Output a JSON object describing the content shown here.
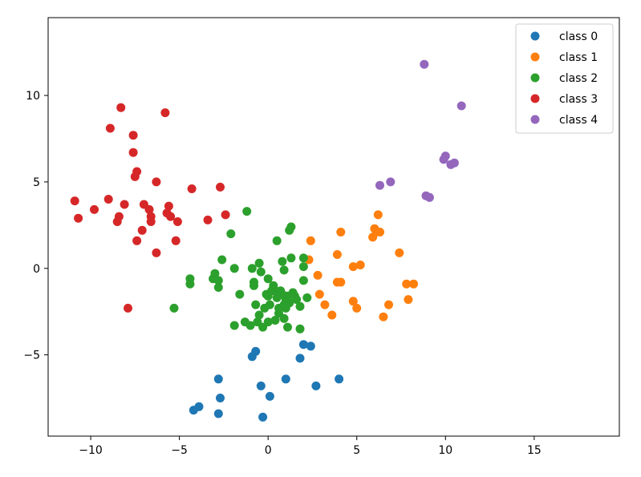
{
  "chart_data": {
    "type": "scatter",
    "title": "",
    "xlabel": "",
    "ylabel": "",
    "xlim": [
      -12.4,
      19.8
    ],
    "ylim": [
      -9.7,
      14.5
    ],
    "xticks": [
      -10,
      -5,
      0,
      5,
      10,
      15
    ],
    "yticks": [
      -5,
      0,
      5,
      10
    ],
    "xtick_labels": [
      "−10",
      "−5",
      "0",
      "5",
      "10",
      "15"
    ],
    "ytick_labels": [
      "−5",
      "0",
      "5",
      "10"
    ],
    "grid": false,
    "legend_position": "top-right",
    "series": [
      {
        "name": "class 0",
        "color": "#1f77b4",
        "points": [
          [
            -4.2,
            -8.2
          ],
          [
            -3.9,
            -8.0
          ],
          [
            -2.8,
            -6.4
          ],
          [
            -2.7,
            -7.5
          ],
          [
            -2.8,
            -8.4
          ],
          [
            -0.9,
            -5.1
          ],
          [
            -0.7,
            -4.8
          ],
          [
            -0.4,
            -6.8
          ],
          [
            -0.3,
            -8.6
          ],
          [
            0.1,
            -7.4
          ],
          [
            1.0,
            -6.4
          ],
          [
            1.8,
            -5.2
          ],
          [
            2.0,
            -4.4
          ],
          [
            2.4,
            -4.5
          ],
          [
            2.7,
            -6.8
          ],
          [
            4.0,
            -6.4
          ]
        ]
      },
      {
        "name": "class 1",
        "color": "#ff7f0e",
        "points": [
          [
            2.3,
            0.5
          ],
          [
            2.4,
            1.6
          ],
          [
            2.8,
            -0.4
          ],
          [
            2.9,
            -1.5
          ],
          [
            3.2,
            -2.1
          ],
          [
            3.6,
            -2.7
          ],
          [
            3.9,
            0.8
          ],
          [
            3.9,
            -0.8
          ],
          [
            4.1,
            -0.8
          ],
          [
            4.1,
            2.1
          ],
          [
            4.8,
            0.1
          ],
          [
            4.8,
            -1.9
          ],
          [
            5.0,
            -2.3
          ],
          [
            5.2,
            0.2
          ],
          [
            5.9,
            1.8
          ],
          [
            6.0,
            2.3
          ],
          [
            6.1,
            2.1
          ],
          [
            6.2,
            3.1
          ],
          [
            6.3,
            2.1
          ],
          [
            6.5,
            -2.8
          ],
          [
            6.8,
            -2.1
          ],
          [
            7.4,
            0.9
          ],
          [
            7.8,
            -0.9
          ],
          [
            7.9,
            -1.8
          ],
          [
            8.2,
            -0.9
          ]
        ]
      },
      {
        "name": "class 2",
        "color": "#2ca02c",
        "points": [
          [
            -5.3,
            -2.3
          ],
          [
            -4.4,
            -0.6
          ],
          [
            -4.4,
            -0.9
          ],
          [
            -3.1,
            -0.6
          ],
          [
            -3.0,
            -0.3
          ],
          [
            -2.8,
            -0.7
          ],
          [
            -2.8,
            -1.1
          ],
          [
            -2.6,
            0.5
          ],
          [
            -2.1,
            2.0
          ],
          [
            -1.9,
            -3.3
          ],
          [
            -1.9,
            0.0
          ],
          [
            -1.6,
            -1.5
          ],
          [
            -1.3,
            -3.1
          ],
          [
            -1.2,
            3.3
          ],
          [
            -1.0,
            -3.3
          ],
          [
            -0.9,
            0.0
          ],
          [
            -0.8,
            -1.0
          ],
          [
            -0.8,
            -0.8
          ],
          [
            -0.7,
            -2.1
          ],
          [
            -0.6,
            -3.1
          ],
          [
            -0.5,
            0.3
          ],
          [
            -0.5,
            -2.7
          ],
          [
            -0.4,
            -0.2
          ],
          [
            -0.3,
            -3.4
          ],
          [
            -0.2,
            -2.3
          ],
          [
            -0.1,
            -1.5
          ],
          [
            0.0,
            -0.6
          ],
          [
            0.0,
            -3.1
          ],
          [
            0.0,
            -1.6
          ],
          [
            0.1,
            -2.1
          ],
          [
            0.2,
            -1.3
          ],
          [
            0.3,
            -1.0
          ],
          [
            0.4,
            -3.0
          ],
          [
            0.4,
            -1.3
          ],
          [
            0.5,
            -1.7
          ],
          [
            0.5,
            1.6
          ],
          [
            0.6,
            -2.3
          ],
          [
            0.6,
            -2.6
          ],
          [
            0.7,
            -1.3
          ],
          [
            0.8,
            -1.5
          ],
          [
            0.8,
            0.4
          ],
          [
            0.9,
            -2.1
          ],
          [
            0.9,
            -0.1
          ],
          [
            0.9,
            -2.9
          ],
          [
            1.0,
            -2.3
          ],
          [
            1.0,
            -1.8
          ],
          [
            1.1,
            -1.6
          ],
          [
            1.1,
            -3.4
          ],
          [
            1.2,
            2.2
          ],
          [
            1.2,
            -2.0
          ],
          [
            1.3,
            2.4
          ],
          [
            1.3,
            0.6
          ],
          [
            1.4,
            -1.4
          ],
          [
            1.5,
            -1.6
          ],
          [
            1.6,
            -1.8
          ],
          [
            1.8,
            -2.2
          ],
          [
            1.8,
            -3.5
          ],
          [
            2.0,
            -0.7
          ],
          [
            2.0,
            0.6
          ],
          [
            2.0,
            0.1
          ],
          [
            2.2,
            -1.7
          ]
        ]
      },
      {
        "name": "class 3",
        "color": "#d62728",
        "points": [
          [
            -10.9,
            3.9
          ],
          [
            -10.7,
            2.9
          ],
          [
            -9.8,
            3.4
          ],
          [
            -9.0,
            4.0
          ],
          [
            -8.9,
            8.1
          ],
          [
            -8.5,
            2.7
          ],
          [
            -8.4,
            3.0
          ],
          [
            -8.3,
            9.3
          ],
          [
            -8.1,
            3.7
          ],
          [
            -7.9,
            -2.3
          ],
          [
            -7.6,
            7.7
          ],
          [
            -7.6,
            6.7
          ],
          [
            -7.5,
            5.3
          ],
          [
            -7.4,
            5.6
          ],
          [
            -7.4,
            1.6
          ],
          [
            -7.1,
            2.2
          ],
          [
            -7.0,
            3.7
          ],
          [
            -6.7,
            3.4
          ],
          [
            -6.6,
            3.0
          ],
          [
            -6.6,
            2.7
          ],
          [
            -6.3,
            5.0
          ],
          [
            -6.3,
            0.9
          ],
          [
            -5.8,
            9.0
          ],
          [
            -5.7,
            3.2
          ],
          [
            -5.6,
            3.6
          ],
          [
            -5.5,
            3.0
          ],
          [
            -5.2,
            1.6
          ],
          [
            -5.1,
            2.7
          ],
          [
            -4.3,
            4.6
          ],
          [
            -3.4,
            2.8
          ],
          [
            -2.7,
            4.7
          ],
          [
            -2.4,
            3.1
          ]
        ]
      },
      {
        "name": "class 4",
        "color": "#9467bd",
        "points": [
          [
            6.3,
            4.8
          ],
          [
            6.9,
            5.0
          ],
          [
            8.8,
            11.8
          ],
          [
            8.9,
            4.2
          ],
          [
            9.1,
            4.1
          ],
          [
            9.9,
            6.3
          ],
          [
            10.0,
            6.5
          ],
          [
            10.3,
            6.0
          ],
          [
            10.5,
            6.1
          ],
          [
            10.9,
            9.4
          ]
        ]
      }
    ]
  }
}
